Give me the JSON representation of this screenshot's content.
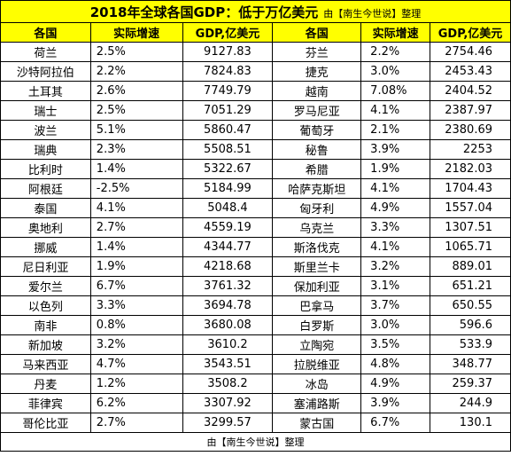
{
  "title": "2018年全球各国GDP：低于万亿美元",
  "subtitle": "由【南生今世说】整理",
  "headers": [
    "各国",
    "实际增速",
    "GDP,亿美元",
    "各国",
    "实际增速",
    "GDP,亿美元"
  ],
  "rows": [
    [
      "荷兰",
      "2.5%",
      "9127.83",
      "芬兰",
      "2.2%",
      "2754.46"
    ],
    [
      "沙特阿拉伯",
      "2.2%",
      "7824.83",
      "捷克",
      "3.0%",
      "2453.43"
    ],
    [
      "土耳其",
      "2.6%",
      "7749.79",
      "越南",
      "7.08%",
      "2404.52"
    ],
    [
      "瑞士",
      "2.5%",
      "7051.29",
      "罗马尼亚",
      "4.1%",
      "2387.97"
    ],
    [
      "波兰",
      "5.1%",
      "5860.47",
      "葡萄牙",
      "2.1%",
      "2380.69"
    ],
    [
      "瑞典",
      "2.3%",
      "5508.51",
      "秘鲁",
      "3.9%",
      "2253"
    ],
    [
      "比利时",
      "1.4%",
      "5322.67",
      "希腊",
      "1.9%",
      "2182.03"
    ],
    [
      "阿根廷",
      "-2.5%",
      "5184.99",
      "哈萨克斯坦",
      "4.1%",
      "1704.43"
    ],
    [
      "泰国",
      "4.1%",
      "5048.4",
      "匈牙利",
      "4.9%",
      "1557.04"
    ],
    [
      "奥地利",
      "2.7%",
      "4559.19",
      "乌克兰",
      "3.3%",
      "1307.51"
    ],
    [
      "挪威",
      "1.4%",
      "4344.77",
      "斯洛伐克",
      "4.1%",
      "1065.71"
    ],
    [
      "尼日利亚",
      "1.9%",
      "4218.68",
      "斯里兰卡",
      "3.2%",
      "889.01"
    ],
    [
      "爱尔兰",
      "6.7%",
      "3761.32",
      "保加利亚",
      "3.1%",
      "651.21"
    ],
    [
      "以色列",
      "3.3%",
      "3694.78",
      "巴拿马",
      "3.7%",
      "650.55"
    ],
    [
      "南非",
      "0.8%",
      "3680.08",
      "白罗斯",
      "3.0%",
      "596.6"
    ],
    [
      "新加坡",
      "3.2%",
      "3610.2",
      "立陶宛",
      "3.5%",
      "533.9"
    ],
    [
      "马来西亚",
      "4.7%",
      "3543.51",
      "拉脱维亚",
      "4.8%",
      "348.77"
    ],
    [
      "丹麦",
      "1.2%",
      "3508.2",
      "冰岛",
      "4.9%",
      "259.37"
    ],
    [
      "菲律宾",
      "6.2%",
      "3307.92",
      "塞浦路斯",
      "3.9%",
      "244.9"
    ],
    [
      "哥伦比亚",
      "2.7%",
      "3299.57",
      "蒙古国",
      "6.7%",
      "130.1"
    ]
  ],
  "footer": "由【南生今世说】整理",
  "colors": {
    "header_bg": "#ffff00",
    "border": "#000000"
  }
}
